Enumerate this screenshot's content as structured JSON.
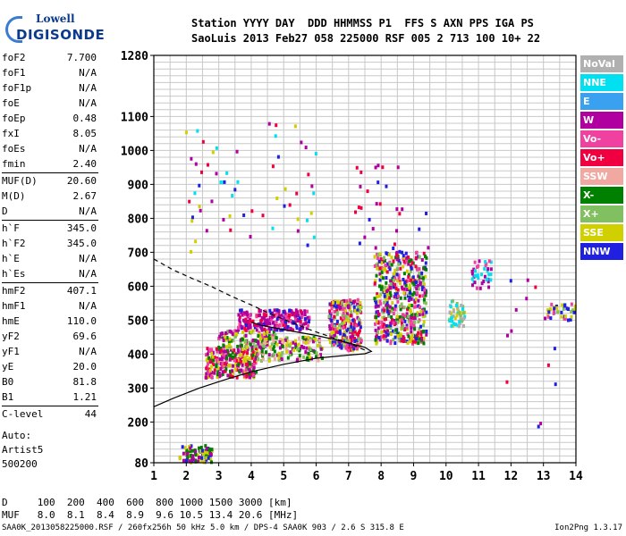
{
  "logo": {
    "line1": "Lowell",
    "line2": "DIGISONDE"
  },
  "header": {
    "line1": "Station YYYY DAY  DDD HHMMSS P1  FFS S AXN PPS IGA PS",
    "line2": "SaoLuis 2013 Feb27 058 225000 RSF 005 2 713 100 10+ 22"
  },
  "params": [
    {
      "name": "foF2",
      "value": "7.700"
    },
    {
      "name": "foF1",
      "value": "N/A"
    },
    {
      "name": "foF1p",
      "value": "N/A"
    },
    {
      "name": "foE",
      "value": "N/A"
    },
    {
      "name": "foEp",
      "value": "0.48"
    },
    {
      "name": "fxI",
      "value": "8.05"
    },
    {
      "name": "foEs",
      "value": "N/A"
    },
    {
      "name": "fmin",
      "value": "2.40"
    },
    {
      "name": "MUF(D)",
      "value": "20.60"
    },
    {
      "name": "M(D)",
      "value": "2.67"
    },
    {
      "name": "D",
      "value": "N/A"
    },
    {
      "name": "h`F",
      "value": "345.0"
    },
    {
      "name": "h`F2",
      "value": "345.0"
    },
    {
      "name": "h`E",
      "value": "N/A"
    },
    {
      "name": "h`Es",
      "value": "N/A"
    },
    {
      "name": "hmF2",
      "value": "407.1"
    },
    {
      "name": "hmF1",
      "value": "N/A"
    },
    {
      "name": "hmE",
      "value": "110.0"
    },
    {
      "name": "yF2",
      "value": "69.6"
    },
    {
      "name": "yF1",
      "value": "N/A"
    },
    {
      "name": "yE",
      "value": "20.0"
    },
    {
      "name": "B0",
      "value": "81.8"
    },
    {
      "name": "B1",
      "value": "1.21"
    },
    {
      "name": "C-level",
      "value": "44"
    }
  ],
  "auto": {
    "line1": "Auto:",
    "line2": "Artist5",
    "line3": "500200"
  },
  "dmuf": {
    "d_line": "D     100  200  400  600  800 1000 1500 3000 [km]",
    "muf_line": "MUF   8.0  8.1  8.4  8.9  9.6 10.5 13.4 20.6 [MHz]"
  },
  "footer": {
    "left": "SAA0K_2013058225000.RSF / 260fx256h 50 kHz 5.0 km / DPS-4 SAA0K 903 / 2.6 S 315.8 E",
    "right": "Ion2Png 1.3.17"
  },
  "legend": [
    {
      "label": "NoVal",
      "color": "#b0b0b0"
    },
    {
      "label": "NNE",
      "color": "#00e0f0"
    },
    {
      "label": "E",
      "color": "#3aa0f0"
    },
    {
      "label": "W",
      "color": "#b000a0"
    },
    {
      "label": "Vo-",
      "color": "#f040a0"
    },
    {
      "label": "Vo+",
      "color": "#f00040"
    },
    {
      "label": "SSW",
      "color": "#f0a8a0"
    },
    {
      "label": "X-",
      "color": "#008000"
    },
    {
      "label": "X+",
      "color": "#80c060"
    },
    {
      "label": "SSE",
      "color": "#d0d000"
    },
    {
      "label": "NNW",
      "color": "#2020e0"
    }
  ],
  "chart_data": {
    "type": "scatter",
    "xlim": [
      1,
      14
    ],
    "ylim": [
      80,
      1280
    ],
    "x_ticks": [
      "1",
      "2",
      "3",
      "4",
      "5",
      "6",
      "7",
      "8",
      "9",
      "10",
      "11",
      "12",
      "13",
      "14"
    ],
    "y_ticks": [
      "80",
      "200",
      "300",
      "400",
      "500",
      "600",
      "700",
      "800",
      "900",
      "1000",
      "1100",
      "1280"
    ],
    "grid": true,
    "curves": [
      {
        "style": "solid",
        "points": [
          [
            1,
            245
          ],
          [
            1.6,
            270
          ],
          [
            2.4,
            300
          ],
          [
            3.2,
            325
          ],
          [
            4,
            348
          ],
          [
            5,
            370
          ],
          [
            6,
            388
          ],
          [
            7,
            397
          ],
          [
            7.5,
            401
          ],
          [
            7.7,
            408
          ],
          [
            7.5,
            420
          ],
          [
            6.8,
            438
          ],
          [
            6,
            455
          ],
          [
            5,
            472
          ],
          [
            4.3,
            485
          ],
          [
            4,
            494
          ]
        ]
      },
      {
        "style": "dashed",
        "points": [
          [
            1,
            680
          ],
          [
            1.6,
            648
          ],
          [
            2.2,
            622
          ],
          [
            2.8,
            598
          ],
          [
            3.4,
            570
          ],
          [
            4,
            545
          ],
          [
            4.6,
            518
          ],
          [
            5.2,
            495
          ],
          [
            5.8,
            472
          ],
          [
            6.4,
            452
          ],
          [
            7,
            432
          ],
          [
            7.3,
            420
          ],
          [
            7.6,
            408
          ]
        ]
      }
    ],
    "clusters": [
      {
        "x": [
          1.8,
          2.8
        ],
        "y": [
          80,
          130
        ],
        "colors": [
          "#2020e0",
          "#008000",
          "#d0d000",
          "#b000a0"
        ],
        "n": 90
      },
      {
        "x": [
          2.6,
          4.2
        ],
        "y": [
          330,
          420
        ],
        "colors": [
          "#b000a0",
          "#f040a0",
          "#f00040",
          "#008000",
          "#d0d000"
        ],
        "n": 260
      },
      {
        "x": [
          3.0,
          4.8
        ],
        "y": [
          420,
          470
        ],
        "colors": [
          "#b000a0",
          "#f040a0",
          "#008000",
          "#d0d000",
          "#80c060"
        ],
        "n": 120
      },
      {
        "x": [
          3.6,
          5.8
        ],
        "y": [
          470,
          530
        ],
        "colors": [
          "#b000a0",
          "#b000a0",
          "#f040a0",
          "#2020e0",
          "#f00040"
        ],
        "n": 220
      },
      {
        "x": [
          4.2,
          6.2
        ],
        "y": [
          380,
          450
        ],
        "colors": [
          "#d0d000",
          "#80c060",
          "#008000",
          "#f0a8a0",
          "#b000a0"
        ],
        "n": 160
      },
      {
        "x": [
          6.4,
          7.4
        ],
        "y": [
          410,
          560
        ],
        "colors": [
          "#f00040",
          "#f040a0",
          "#b000a0",
          "#d0d000",
          "#80c060",
          "#2020e0"
        ],
        "n": 260
      },
      {
        "x": [
          7.8,
          9.4
        ],
        "y": [
          430,
          700
        ],
        "colors": [
          "#b000a0",
          "#f040a0",
          "#f00040",
          "#d0d000",
          "#80c060",
          "#008000",
          "#2020e0"
        ],
        "n": 520
      },
      {
        "x": [
          10.1,
          10.6
        ],
        "y": [
          480,
          560
        ],
        "colors": [
          "#80c060",
          "#d0d000",
          "#00e0f0",
          "#b0b0b0"
        ],
        "n": 50
      },
      {
        "x": [
          10.8,
          11.4
        ],
        "y": [
          590,
          680
        ],
        "colors": [
          "#b000a0",
          "#f040a0",
          "#00e0f0"
        ],
        "n": 40
      },
      {
        "x": [
          13.1,
          14
        ],
        "y": [
          500,
          550
        ],
        "colors": [
          "#d0d000",
          "#80c060",
          "#f040a0",
          "#2020e0"
        ],
        "n": 40
      },
      {
        "x": [
          2.0,
          6.0
        ],
        "y": [
          700,
          1080
        ],
        "colors": [
          "#b000a0",
          "#f00040",
          "#2020e0",
          "#d0d000",
          "#00e0f0"
        ],
        "n": 60
      },
      {
        "x": [
          7.2,
          9.5
        ],
        "y": [
          700,
          960
        ],
        "colors": [
          "#b000a0",
          "#f00040",
          "#2020e0"
        ],
        "n": 30
      },
      {
        "x": [
          11.8,
          13.8
        ],
        "y": [
          140,
          640
        ],
        "colors": [
          "#b000a0",
          "#2020e0",
          "#f00040"
        ],
        "n": 15
      }
    ]
  }
}
